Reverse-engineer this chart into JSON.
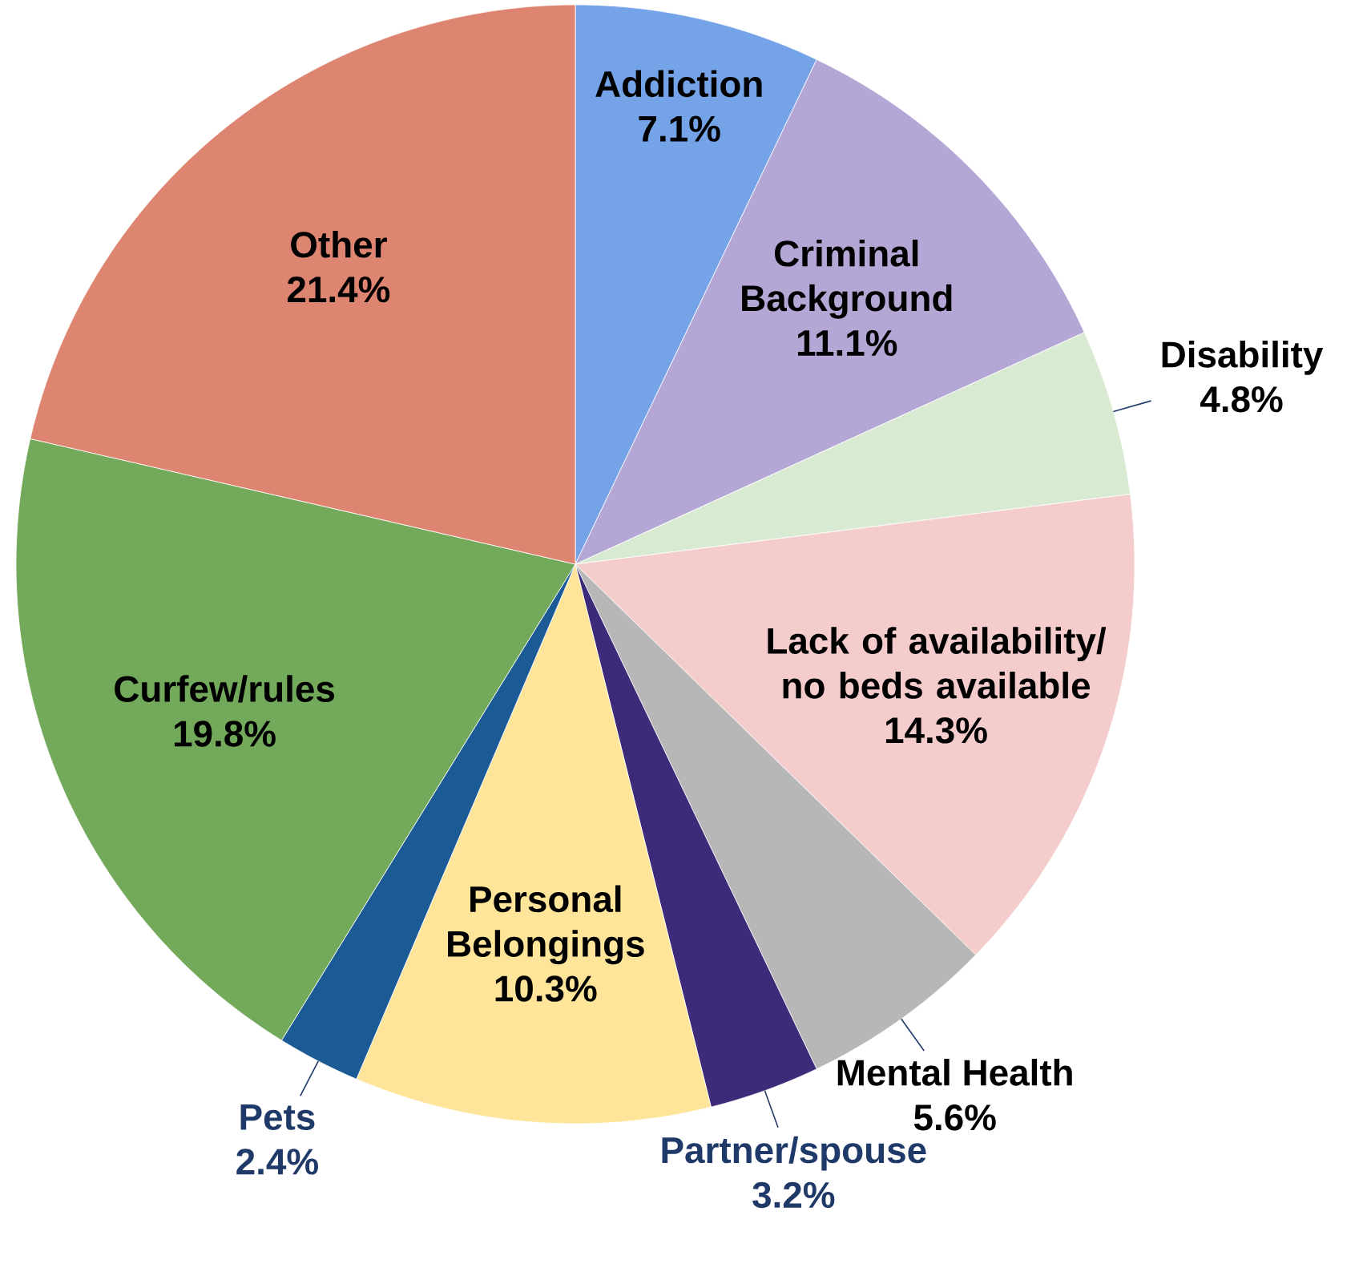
{
  "chart_data": {
    "type": "pie",
    "categories": [
      "Addiction",
      "Criminal Background",
      "Disability",
      "Lack of availability/ no beds available",
      "Mental Health",
      "Partner/spouse",
      "Personal Belongings",
      "Pets",
      "Curfew/rules",
      "Other"
    ],
    "values": [
      7.1,
      11.1,
      4.8,
      14.3,
      5.6,
      3.2,
      10.3,
      2.4,
      19.8,
      21.4
    ],
    "colors": [
      "#74a3e8",
      "#b4a7d6",
      "#d9ead3",
      "#f4cccc",
      "#b7b7b7",
      "#3d2a78",
      "#ffe599",
      "#1c5a96",
      "#72a95a",
      "#dd8571"
    ],
    "value_labels": [
      "7.1%",
      "11.1%",
      "4.8%",
      "14.3%",
      "5.6%",
      "3.2%",
      "10.3%",
      "2.4%",
      "19.8%",
      "21.4%"
    ]
  }
}
